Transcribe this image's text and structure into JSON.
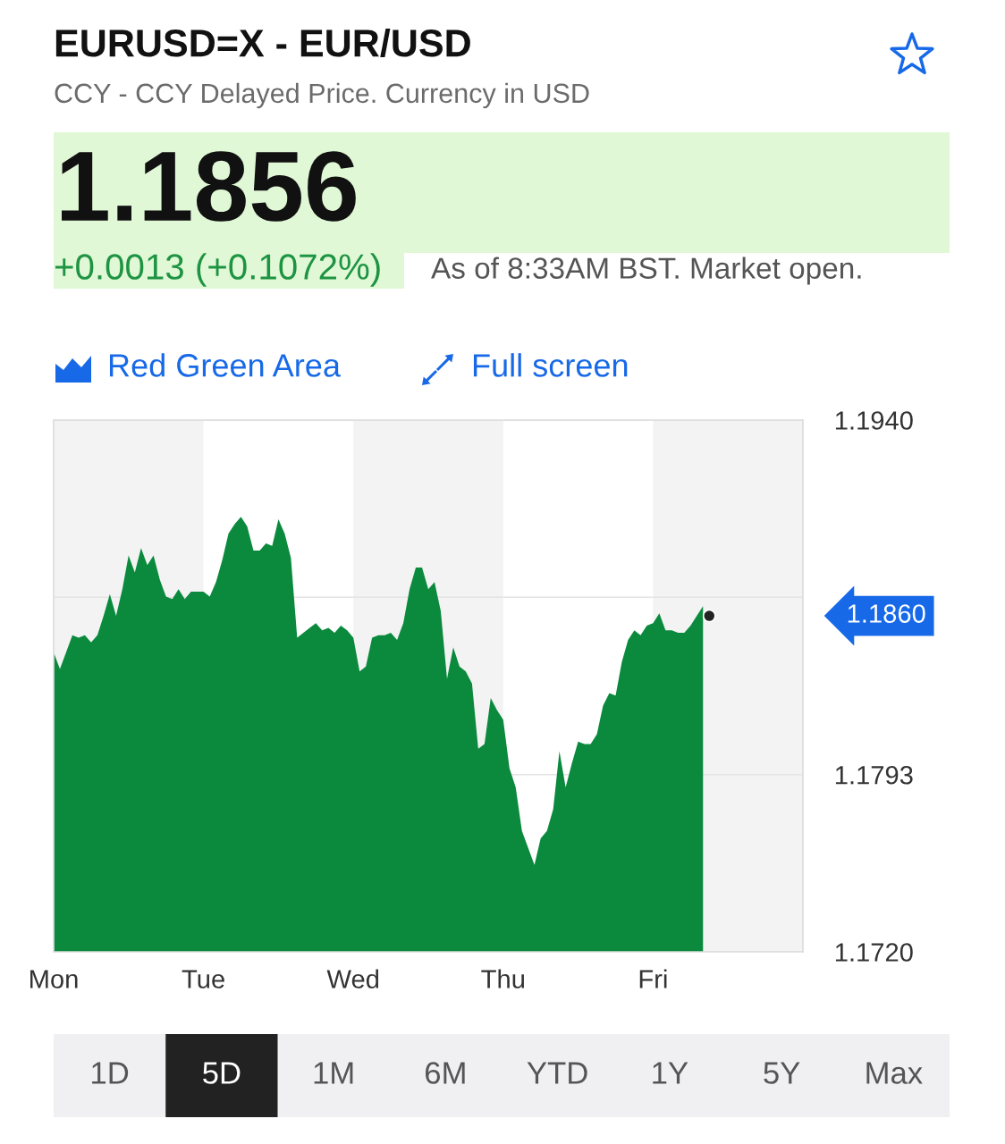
{
  "chart_data": {
    "type": "area",
    "title": "EURUSD=X - EUR/USD",
    "subtitle": "CCY - CCY Delayed Price. Currency in USD",
    "annotations": [
      "1.1856",
      "+0.0013 (+0.1072%)",
      "As of 8:33AM BST. Market open.",
      "Red Green Area",
      "Full screen",
      "1D",
      "5D",
      "1M",
      "6M",
      "YTD",
      "1Y",
      "5Y",
      "Max",
      "1.1860"
    ],
    "categories": [
      "Mon",
      null,
      null,
      null,
      null,
      null,
      null,
      null,
      null,
      null,
      null,
      null,
      null,
      null,
      null,
      null,
      null,
      null,
      null,
      null,
      null,
      null,
      null,
      null,
      "Tue",
      null,
      null,
      null,
      null,
      null,
      null,
      null,
      null,
      null,
      null,
      null,
      null,
      null,
      null,
      null,
      null,
      null,
      null,
      null,
      null,
      null,
      null,
      null,
      "Wed",
      null,
      null,
      null,
      null,
      null,
      null,
      null,
      null,
      null,
      null,
      null,
      null,
      null,
      null,
      null,
      null,
      null,
      null,
      null,
      null,
      null,
      null,
      null,
      "Thu",
      null,
      null,
      null,
      null,
      null,
      null,
      null,
      null,
      null,
      null,
      null,
      null,
      null,
      null,
      null,
      null,
      null,
      null,
      null,
      null,
      null,
      null,
      null,
      "Fri",
      null,
      null,
      null,
      null,
      null,
      null,
      null,
      null,
      null,
      null,
      null,
      null,
      null,
      null,
      null,
      null,
      null,
      null,
      null,
      null,
      null,
      null,
      null
    ],
    "series": [
      {
        "color": "#0b8a3e",
        "values": [
          1.1844,
          1.1837,
          1.1844,
          1.1851,
          1.185,
          1.1851,
          1.1848,
          1.1851,
          1.1859,
          1.1868,
          1.1859,
          1.187,
          1.1884,
          1.1877,
          1.1887,
          1.188,
          1.1884,
          1.1874,
          1.1867,
          1.1866,
          1.187,
          1.1866,
          1.1869,
          1.1869,
          1.1869,
          1.1867,
          1.1873,
          1.1882,
          1.1893,
          1.1897,
          1.19,
          1.1896,
          1.1886,
          1.1886,
          1.1889,
          1.1888,
          1.1899,
          1.1893,
          1.1883,
          1.185,
          1.1852,
          1.1854,
          1.1856,
          1.1853,
          1.1854,
          1.1852,
          1.1855,
          1.1853,
          1.185,
          1.1836,
          1.1838,
          1.185,
          1.1851,
          1.1851,
          1.1852,
          1.1849,
          1.1856,
          1.187,
          1.1879,
          1.1879,
          1.187,
          1.1873,
          1.1861,
          1.1833,
          1.1846,
          1.1838,
          1.1836,
          1.1831,
          1.1804,
          1.1806,
          1.1825,
          1.182,
          1.1816,
          1.1796,
          1.1788,
          1.177,
          1.1763,
          1.1756,
          1.1767,
          1.177,
          1.1779,
          1.1803,
          1.1788,
          1.1798,
          1.1807,
          1.1806,
          1.1806,
          1.181,
          1.1822,
          1.1827,
          1.1826,
          1.184,
          1.1849,
          1.1853,
          1.1851,
          1.1855,
          1.1856,
          1.186,
          1.1853,
          1.1853,
          1.1852,
          1.1852,
          1.1855,
          1.1859,
          1.1863,
          null,
          null,
          null,
          null,
          null,
          null,
          null,
          null,
          null,
          null,
          null,
          null,
          null,
          null,
          null
        ]
      },
      {
        "type": "scatter",
        "color": "#222222",
        "marker": "circle",
        "values": [
          null,
          null,
          null,
          null,
          null,
          null,
          null,
          null,
          null,
          null,
          null,
          null,
          null,
          null,
          null,
          null,
          null,
          null,
          null,
          null,
          null,
          null,
          null,
          null,
          null,
          null,
          null,
          null,
          null,
          null,
          null,
          null,
          null,
          null,
          null,
          null,
          null,
          null,
          null,
          null,
          null,
          null,
          null,
          null,
          null,
          null,
          null,
          null,
          null,
          null,
          null,
          null,
          null,
          null,
          null,
          null,
          null,
          null,
          null,
          null,
          null,
          null,
          null,
          null,
          null,
          null,
          null,
          null,
          null,
          null,
          null,
          null,
          null,
          null,
          null,
          null,
          null,
          null,
          null,
          null,
          null,
          null,
          null,
          null,
          null,
          null,
          null,
          null,
          null,
          null,
          null,
          null,
          null,
          null,
          null,
          null,
          null,
          null,
          null,
          null,
          null,
          null,
          null,
          null,
          null,
          1.1859,
          null,
          null,
          null,
          null,
          null,
          null,
          null,
          null,
          null,
          null,
          null,
          null,
          null,
          null
        ]
      }
    ],
    "ylim": [
      1.172,
      1.194
    ],
    "yticks": [
      {
        "value": 1.194,
        "label": "1.1940"
      },
      {
        "value": 1.18667,
        "label": null
      },
      {
        "value": 1.17933,
        "label": "1.1793"
      },
      {
        "value": 1.172,
        "label": "1.1720"
      }
    ],
    "grid": "y",
    "bands": [
      {
        "axis": "x",
        "from": "Tue",
        "to": "Wed",
        "color": "#ffffff"
      },
      {
        "axis": "x",
        "from": "Thu",
        "to": "Fri",
        "color": "#ffffff"
      }
    ]
  }
}
